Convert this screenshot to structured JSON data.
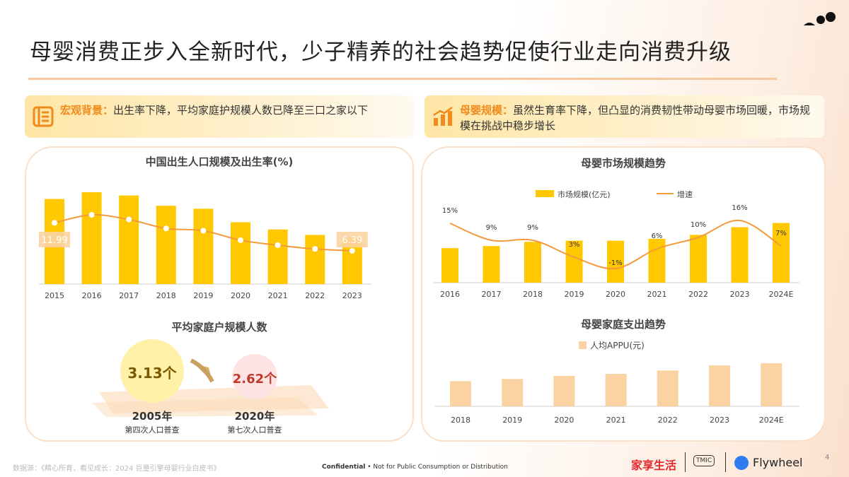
{
  "title": "母婴消费正步入全新时代，少子精养的社会趋势促使行业走向消费升级",
  "callouts": [
    {
      "key": "宏观背景：",
      "text": "出生率下降，平均家庭护规模人数已降至三口之家以下",
      "icon": "document-icon"
    },
    {
      "key": "母婴规模：",
      "text": "虽然生育率下降，但凸显的消费韧性带动母婴市场回暖，市场规模在挑战中稳步增长",
      "icon": "bar-chart-icon"
    }
  ],
  "household": {
    "title": "平均家庭户规模人数",
    "items": [
      {
        "value": "3.13个",
        "year": "2005年",
        "label": "第四次人口普查"
      },
      {
        "value": "2.62个",
        "year": "2020年",
        "label": "第七次人口普查"
      }
    ]
  },
  "footer": {
    "source": "数据源：《精心所育，看见成长：2024 巨量引擎母婴行业白皮书》",
    "confidential": "Confidential",
    "confidential_rest": " • Not for Public Consumption or Distribution",
    "brand1": "家享生活",
    "brand2": "TMIC",
    "brand3": "Flywheel",
    "page": "4"
  },
  "colors": {
    "bar": "#ffc800",
    "line": "#f39a3c",
    "appu": "#fbd3a3",
    "accent": "#f08a1a"
  },
  "chart_data": [
    {
      "type": "bar+line",
      "title": "中国出生人口规模及出生率(%)",
      "categories": [
        "2015",
        "2016",
        "2017",
        "2018",
        "2019",
        "2020",
        "2021",
        "2022",
        "2023"
      ],
      "series": [
        {
          "type": "bar",
          "values": [
            1655,
            1786,
            1723,
            1523,
            1465,
            1202,
            1062,
            956,
            902
          ]
        },
        {
          "type": "line",
          "values": [
            11.99,
            13.57,
            12.64,
            10.86,
            10.41,
            8.52,
            7.52,
            6.77,
            6.39
          ]
        }
      ],
      "data_labels": {
        "first": "11.99",
        "last": "6.39"
      }
    },
    {
      "type": "bar+line",
      "title": "母婴市场规模趋势",
      "categories": [
        "2016",
        "2017",
        "2018",
        "2019",
        "2020",
        "2021",
        "2022",
        "2023",
        "2024E"
      ],
      "series": [
        {
          "name": "市场规模(亿元)",
          "type": "bar",
          "values": [
            148,
            157,
            175,
            180,
            180,
            188,
            205,
            238,
            256
          ]
        },
        {
          "name": "增速",
          "type": "line",
          "values": [
            15,
            9,
            9,
            3,
            -1,
            6,
            10,
            16,
            7
          ],
          "labels": [
            "15%",
            "9%",
            "9%",
            "3%",
            "-1%",
            "6%",
            "10%",
            "16%",
            "7%"
          ]
        }
      ],
      "legend": "top"
    },
    {
      "type": "bar",
      "title": "母婴家庭支出趋势",
      "categories": [
        "2018",
        "2019",
        "2020",
        "2021",
        "2022",
        "2023",
        "2024E"
      ],
      "series": [
        {
          "name": "人均APPU(元)",
          "values": [
            107,
            116,
            129,
            138,
            152,
            174,
            183
          ]
        }
      ],
      "legend": "top-left"
    }
  ]
}
